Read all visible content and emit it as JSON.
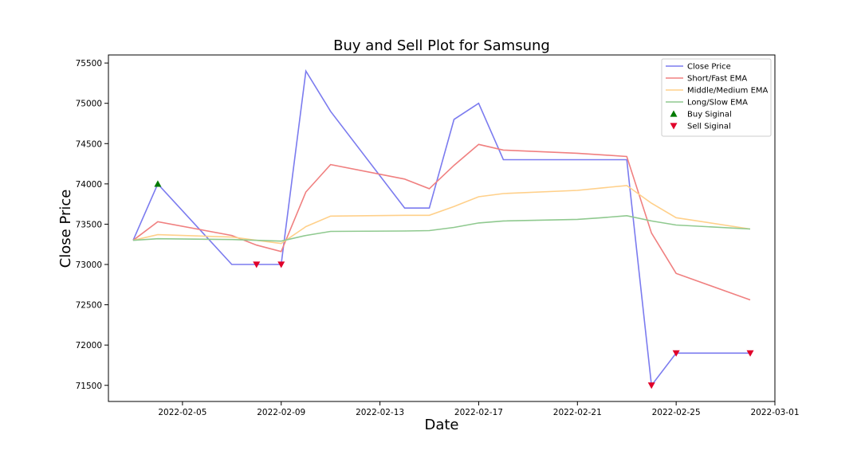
{
  "chart_data": {
    "type": "line",
    "title": "Buy and Sell Plot for Samsung",
    "xlabel": "Date",
    "ylabel": "Close Price",
    "x_tick_labels": [
      "2022-02-05",
      "2022-02-09",
      "2022-02-13",
      "2022-02-17",
      "2022-02-21",
      "2022-02-25",
      "2022-03-01"
    ],
    "y_tick_labels": [
      "71500",
      "72000",
      "72500",
      "73000",
      "73500",
      "74000",
      "74500",
      "75000",
      "75500"
    ],
    "x_tick_values": [
      "2022-02-05",
      "2022-02-09",
      "2022-02-13",
      "2022-02-17",
      "2022-02-21",
      "2022-02-25",
      "2022-03-01"
    ],
    "y_tick_values": [
      71500,
      72000,
      72500,
      73000,
      73500,
      74000,
      74500,
      75000,
      75500
    ],
    "xlim": [
      "2022-02-02",
      "2022-03-01"
    ],
    "ylim": [
      71300,
      75600
    ],
    "grid": false,
    "legend_position": "top-right",
    "series": [
      {
        "name": "Close Price",
        "color": "#7b7bef",
        "points": [
          [
            "2022-02-03",
            73300
          ],
          [
            "2022-02-04",
            74000
          ],
          [
            "2022-02-07",
            73000
          ],
          [
            "2022-02-08",
            73000
          ],
          [
            "2022-02-09",
            73000
          ],
          [
            "2022-02-10",
            75400
          ],
          [
            "2022-02-11",
            74900
          ],
          [
            "2022-02-14",
            73700
          ],
          [
            "2022-02-15",
            73700
          ],
          [
            "2022-02-16",
            74800
          ],
          [
            "2022-02-17",
            75000
          ],
          [
            "2022-02-18",
            74300
          ],
          [
            "2022-02-21",
            74300
          ],
          [
            "2022-02-22",
            74300
          ],
          [
            "2022-02-23",
            74300
          ],
          [
            "2022-02-24",
            71500
          ],
          [
            "2022-02-25",
            71900
          ],
          [
            "2022-02-28",
            71900
          ]
        ]
      },
      {
        "name": "Short/Fast EMA",
        "color": "#f08080",
        "points": [
          [
            "2022-02-03",
            73300
          ],
          [
            "2022-02-04",
            73530
          ],
          [
            "2022-02-07",
            73360
          ],
          [
            "2022-02-08",
            73240
          ],
          [
            "2022-02-09",
            73160
          ],
          [
            "2022-02-10",
            73900
          ],
          [
            "2022-02-11",
            74240
          ],
          [
            "2022-02-14",
            74060
          ],
          [
            "2022-02-15",
            73940
          ],
          [
            "2022-02-16",
            74230
          ],
          [
            "2022-02-17",
            74490
          ],
          [
            "2022-02-18",
            74420
          ],
          [
            "2022-02-21",
            74380
          ],
          [
            "2022-02-22",
            74360
          ],
          [
            "2022-02-23",
            74340
          ],
          [
            "2022-02-24",
            73390
          ],
          [
            "2022-02-25",
            72890
          ],
          [
            "2022-02-28",
            72560
          ]
        ]
      },
      {
        "name": "Middle/Medium EMA",
        "color": "#ffd08a",
        "points": [
          [
            "2022-02-03",
            73300
          ],
          [
            "2022-02-04",
            73370
          ],
          [
            "2022-02-07",
            73340
          ],
          [
            "2022-02-08",
            73300
          ],
          [
            "2022-02-09",
            73260
          ],
          [
            "2022-02-10",
            73470
          ],
          [
            "2022-02-11",
            73600
          ],
          [
            "2022-02-14",
            73610
          ],
          [
            "2022-02-15",
            73610
          ],
          [
            "2022-02-16",
            73720
          ],
          [
            "2022-02-17",
            73840
          ],
          [
            "2022-02-18",
            73880
          ],
          [
            "2022-02-21",
            73920
          ],
          [
            "2022-02-22",
            73950
          ],
          [
            "2022-02-23",
            73980
          ],
          [
            "2022-02-24",
            73760
          ],
          [
            "2022-02-25",
            73580
          ],
          [
            "2022-02-28",
            73440
          ]
        ]
      },
      {
        "name": "Long/Slow EMA",
        "color": "#8fc98f",
        "points": [
          [
            "2022-02-03",
            73300
          ],
          [
            "2022-02-04",
            73320
          ],
          [
            "2022-02-07",
            73310
          ],
          [
            "2022-02-08",
            73300
          ],
          [
            "2022-02-09",
            73290
          ],
          [
            "2022-02-10",
            73360
          ],
          [
            "2022-02-11",
            73410
          ],
          [
            "2022-02-14",
            73415
          ],
          [
            "2022-02-15",
            73420
          ],
          [
            "2022-02-16",
            73460
          ],
          [
            "2022-02-17",
            73515
          ],
          [
            "2022-02-18",
            73540
          ],
          [
            "2022-02-21",
            73560
          ],
          [
            "2022-02-22",
            73580
          ],
          [
            "2022-02-23",
            73605
          ],
          [
            "2022-02-24",
            73540
          ],
          [
            "2022-02-25",
            73490
          ],
          [
            "2022-02-28",
            73440
          ]
        ]
      }
    ],
    "signals": [
      {
        "name": "Buy Siginal",
        "marker": "triangle-up",
        "color": "#007a00",
        "points": [
          [
            "2022-02-04",
            74000
          ]
        ]
      },
      {
        "name": "Sell Siginal",
        "marker": "triangle-down",
        "color": "#e0002a",
        "points": [
          [
            "2022-02-08",
            73000
          ],
          [
            "2022-02-09",
            73000
          ],
          [
            "2022-02-24",
            71500
          ],
          [
            "2022-02-25",
            71900
          ],
          [
            "2022-02-28",
            71900
          ]
        ]
      }
    ]
  }
}
